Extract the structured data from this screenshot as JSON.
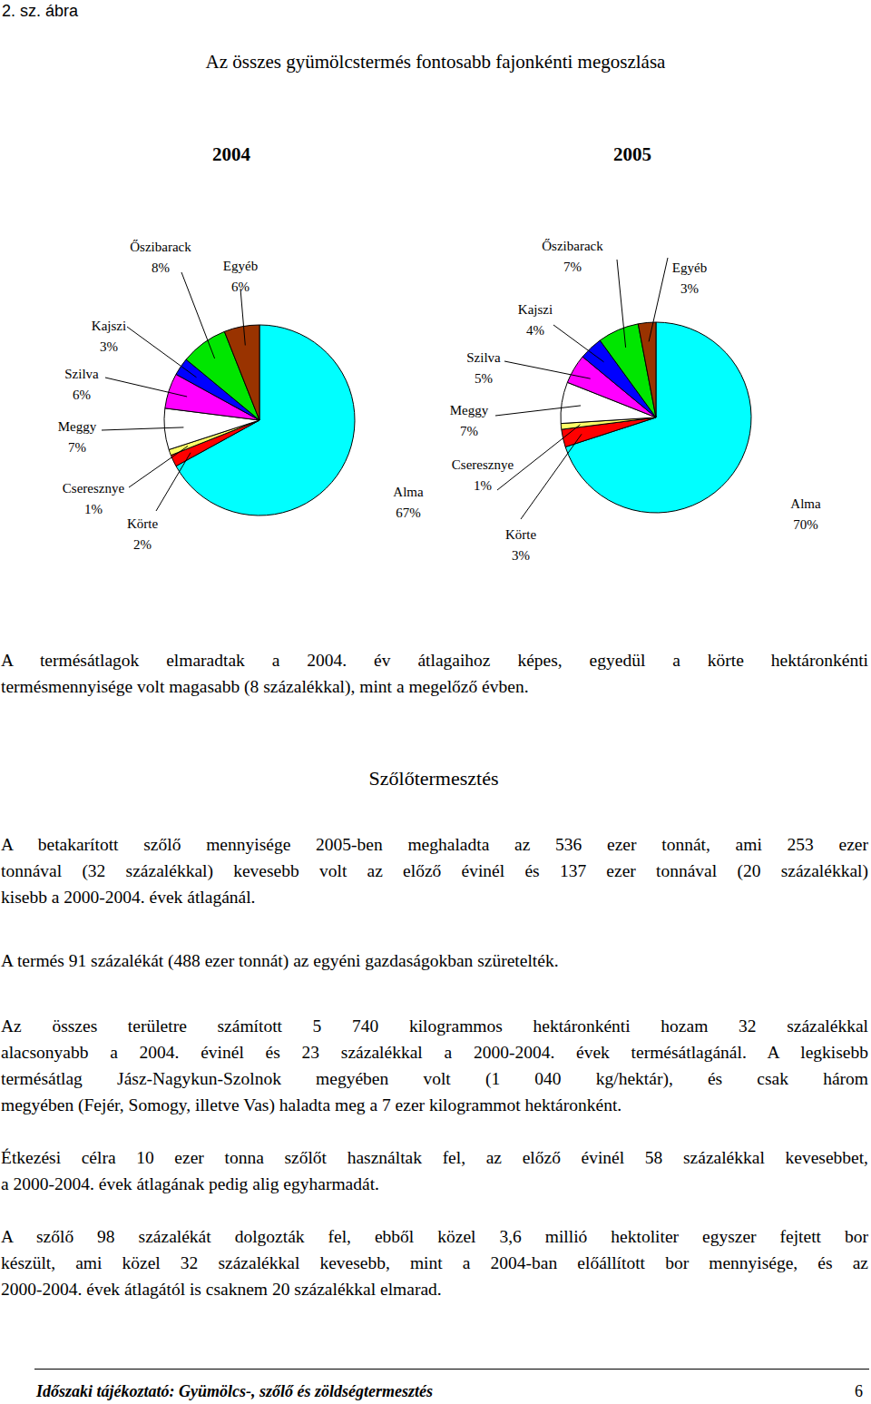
{
  "figure": {
    "label": "2. sz. ábra",
    "title": "Az összes gyümölcstermés fontosabb fajonkénti megoszlása"
  },
  "chart_data": [
    {
      "type": "pie",
      "title": "2004",
      "categories": [
        "Alma",
        "Körte",
        "Cseresznye",
        "Meggy",
        "Szilva",
        "Kajszi",
        "Őszibarack",
        "Egyéb"
      ],
      "values": [
        67,
        2,
        1,
        7,
        6,
        3,
        8,
        6
      ],
      "value_labels": [
        "67%",
        "2%",
        "1%",
        "7%",
        "6%",
        "3%",
        "8%",
        "6%"
      ],
      "colors": [
        "#00ffff",
        "#ff0000",
        "#ffff66",
        "#ffffff",
        "#ff00ff",
        "#0000ff",
        "#00e600",
        "#993300"
      ],
      "data_labels": true
    },
    {
      "type": "pie",
      "title": "2005",
      "categories": [
        "Alma",
        "Körte",
        "Cseresznye",
        "Meggy",
        "Szilva",
        "Kajszi",
        "Őszibarack",
        "Egyéb"
      ],
      "values": [
        70,
        3,
        1,
        7,
        5,
        4,
        7,
        3
      ],
      "value_labels": [
        "70%",
        "3%",
        "1%",
        "7%",
        "5%",
        "4%",
        "7%",
        "3%"
      ],
      "colors": [
        "#00ffff",
        "#ff0000",
        "#ffff66",
        "#ffffff",
        "#ff00ff",
        "#0000ff",
        "#00e600",
        "#993300"
      ],
      "data_labels": true
    }
  ],
  "paragraphs": [
    [
      "A termésátlagok elmaradtak a 2004. év átlagaihoz képes, egyedül a körte hektáronkénti",
      "termésmennyisége volt magasabb (8 százalékkal), mint a megelőző évben."
    ],
    [
      "A betakarított szőlő mennyisége 2005-ben meghaladta az 536 ezer tonnát, ami 253 ezer",
      "tonnával (32 százalékkal) kevesebb volt az előző évinél és 137 ezer tonnával (20 százalékkal)",
      "kisebb a 2000-2004. évek átlagánál."
    ],
    [
      "A termés 91 százalékát (488 ezer tonnát) az egyéni gazdaságokban szüretelték."
    ],
    [
      "Az összes területre számított 5 740 kilogrammos hektáronkénti hozam 32 százalékkal",
      "alacsonyabb a 2004. évinél és 23 százalékkal a 2000-2004. évek termésátlagánál. A legkisebb",
      "termésátlag Jász-Nagykun-Szolnok megyében volt (1 040 kg/hektár), és csak három",
      "megyében (Fejér, Somogy, illetve Vas) haladta meg a 7 ezer kilogrammot hektáronként."
    ],
    [
      "Étkezési célra 10 ezer tonna szőlőt használtak fel, az előző évinél 58 százalékkal kevesebbet,",
      "a 2000-2004. évek átlagának pedig alig egyharmadát."
    ],
    [
      "A szőlő 98 százalékát dolgozták fel, ebből közel 3,6 millió hektoliter egyszer fejtett bor",
      "készült, ami közel 32 százalékkal kevesebb, mint a 2004-ban előállított bor mennyisége, és az",
      "2000-2004. évek átlagától is csaknem 20 százalékkal elmarad."
    ]
  ],
  "heading": "Szőlőtermesztés",
  "footer": {
    "title": "Időszaki tájékoztató: Gyümölcs-, szőlő és zöldségtermesztés",
    "page": "6"
  }
}
